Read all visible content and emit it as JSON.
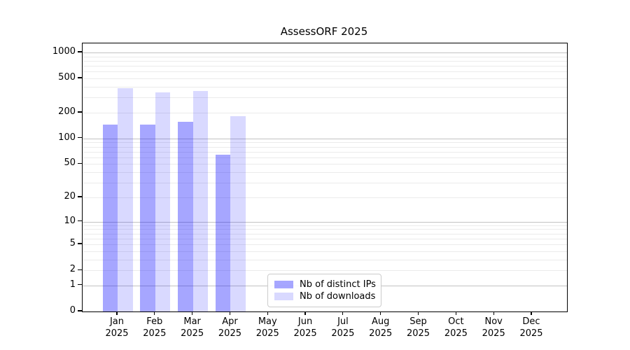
{
  "chart_data": {
    "type": "bar",
    "title": "AssessORF 2025",
    "categories": [
      "Jan",
      "Feb",
      "Mar",
      "Apr",
      "May",
      "Jun",
      "Jul",
      "Aug",
      "Sep",
      "Oct",
      "Nov",
      "Dec"
    ],
    "category_year": "2025",
    "series": [
      {
        "name": "Nb of distinct IPs",
        "color": "rgba(0,0,255,0.35)",
        "color_flat": "#a6a6ff",
        "values": [
          146,
          146,
          156,
          64,
          0,
          0,
          0,
          0,
          0,
          0,
          0,
          0
        ]
      },
      {
        "name": "Nb of downloads",
        "color": "rgba(0,0,255,0.15)",
        "color_flat": "#d9d9ff",
        "values": [
          383,
          344,
          355,
          183,
          0,
          0,
          0,
          0,
          0,
          0,
          0,
          0
        ]
      }
    ],
    "xlabel": "",
    "ylabel": "",
    "yscale": "log10(1+y)",
    "yticks": [
      0,
      1,
      2,
      5,
      10,
      20,
      50,
      100,
      200,
      500,
      1000
    ],
    "ylim": [
      0,
      1275
    ],
    "grid": {
      "orientation": "horizontal",
      "major_at": [
        1,
        10,
        100,
        1000
      ],
      "major_color": "#c3c3c3",
      "minor_color": "#ebebeb"
    },
    "legend": {
      "position": "inside-bottom-left-of-center",
      "border_color": "#cccccc"
    },
    "frame_color": "#000000",
    "background_color": "#ffffff"
  }
}
